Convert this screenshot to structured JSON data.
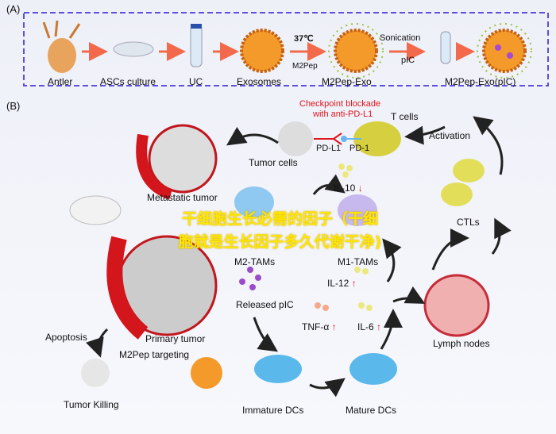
{
  "panel_a": {
    "label": "(A)",
    "steps": [
      "Antler",
      "ASCs culture",
      "UC",
      "Exosomes",
      "M2Pep-Exo",
      "M2Pep-Exo(pIC)"
    ],
    "temp": "37℃",
    "m2pep": "M2Pep",
    "sonication": "Sonication",
    "pic": "pIC"
  },
  "panel_b": {
    "label": "(B)",
    "checkpoint_line1": "Checkpoint blockade",
    "checkpoint_line2": "with anti-PD-L1",
    "t_cells": "T cells",
    "pd_l1": "PD-L1",
    "pd_1": "PD-1",
    "tumor_cells": "Tumor cells",
    "activation": "Activation",
    "metastatic_tumor": "Metastatic tumor",
    "il10": "IL-10",
    "m2_tams": "M2-TAMs",
    "m1_tams": "M1-TAMs",
    "ctls": "CTLs",
    "il12": "IL-12",
    "released_pic": "Released pIC",
    "apoptosis": "Apoptosis",
    "primary_tumor": "Primary tumor",
    "tnf": "TNF-α",
    "il6": "IL-6",
    "lymph_nodes": "Lymph nodes",
    "m2pep_targeting": "M2Pep targeting",
    "tumor_killing": "Tumor Killing",
    "immature_dcs": "Immature DCs",
    "mature_dcs": "Mature DCs",
    "down_arrow": "↓",
    "up_arrow": "↑"
  },
  "watermark": {
    "line1": "干细胞生长必需的因子（干细",
    "line2": "胞就是生长因子多久代谢干净)"
  },
  "colors": {
    "frame": "#5a4fe0",
    "arrow": "#f26a4b",
    "red": "#e0141c",
    "watermark": "#ffe600"
  }
}
